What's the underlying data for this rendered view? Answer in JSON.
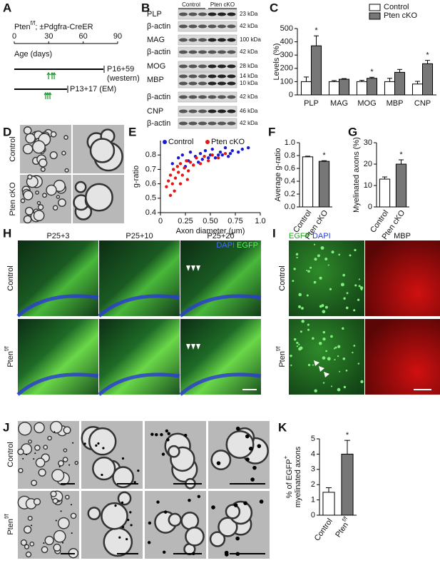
{
  "figure": {
    "panel_labels": [
      "A",
      "B",
      "C",
      "D",
      "E",
      "F",
      "G",
      "H",
      "I",
      "J",
      "K"
    ],
    "A": {
      "genotype": {
        "base": "Pten",
        "sup": "f/f",
        "rest": "; ±Pdgfra-CreER"
      },
      "axis_label": "Age (days)",
      "ticks": [
        0,
        30,
        60,
        90
      ],
      "timeline1": "P16+59",
      "timeline1_note": "(western)",
      "timeline2": "P13+17 (EM)"
    },
    "B": {
      "groups": [
        "Control",
        "Pten cKO"
      ],
      "rows": [
        {
          "protein": "PLP",
          "kda": [
            "23 kDa"
          ]
        },
        {
          "protein": "β-actin",
          "kda": [
            "42 kDa"
          ]
        },
        {
          "protein": "MAG",
          "kda": [
            "100 kDa"
          ]
        },
        {
          "protein": "β-actin",
          "kda": [
            "42 kDa"
          ]
        },
        {
          "protein": "MOG",
          "kda": [
            "28 kDa"
          ]
        },
        {
          "protein": "MBP",
          "kda": [
            "14 kDa",
            "10 kDa"
          ]
        },
        {
          "protein": "β-actin",
          "kda": [
            "42 kDa"
          ]
        },
        {
          "protein": "CNP",
          "kda": [
            "46 kDa"
          ]
        },
        {
          "protein": "β-actin",
          "kda": [
            "42 kDa"
          ]
        }
      ]
    },
    "D": {
      "rows": [
        "Control",
        "Pten cKO"
      ]
    },
    "H": {
      "columns": [
        "P25+3",
        "P25+10",
        "P25+20"
      ],
      "stain1": "DAPI",
      "stain2": "EGFP",
      "rows": [
        {
          "base": "Control"
        },
        {
          "base": "Pten",
          "sup": "f/f"
        }
      ]
    },
    "I": {
      "stain1": "EGFP",
      "stain2": "DAPI",
      "stain3": "MBP",
      "rows": [
        {
          "base": "Control"
        },
        {
          "base": "Pten",
          "sup": "f/f"
        }
      ]
    },
    "J": {
      "rows": [
        {
          "base": "Control"
        },
        {
          "base": "Pten",
          "sup": "f/f"
        }
      ]
    }
  },
  "chart_data": [
    {
      "type": "bar",
      "y_label": "Levels (%)",
      "categories": [
        "PLP",
        "MAG",
        "MOG",
        "MBP",
        "CNP"
      ],
      "series": [
        {
          "name": "Control",
          "color": "#ffffff",
          "values": [
            100,
            100,
            100,
            100,
            82
          ],
          "errors": [
            35,
            8,
            10,
            25,
            20
          ]
        },
        {
          "name": "Pten cKO",
          "color": "#777777",
          "values": [
            370,
            118,
            125,
            170,
            235
          ],
          "errors": [
            75,
            5,
            8,
            22,
            25
          ],
          "significance": [
            "*",
            null,
            "*",
            null,
            "*"
          ]
        }
      ],
      "ylim": [
        0,
        500
      ],
      "yticks": [
        0,
        100,
        200,
        300,
        400,
        500
      ],
      "legend": "upper right"
    },
    {
      "type": "scatter",
      "x_label": "Axon diameter (μm)",
      "y_label": "g-ratio",
      "series": [
        {
          "name": "Control",
          "color": "#1a1ad0",
          "x": [
            0.12,
            0.18,
            0.22,
            0.28,
            0.3,
            0.35,
            0.4,
            0.42,
            0.45,
            0.5,
            0.52,
            0.55,
            0.6,
            0.62,
            0.65,
            0.7,
            0.72,
            0.78,
            0.82,
            0.88,
            0.25,
            0.38,
            0.48,
            0.58,
            0.68
          ],
          "values": [
            0.74,
            0.78,
            0.8,
            0.76,
            0.82,
            0.79,
            0.81,
            0.77,
            0.83,
            0.8,
            0.84,
            0.78,
            0.82,
            0.8,
            0.85,
            0.81,
            0.83,
            0.82,
            0.84,
            0.85,
            0.72,
            0.75,
            0.78,
            0.8,
            0.79
          ]
        },
        {
          "name": "Pten cKO",
          "color": "#e01818",
          "x": [
            0.06,
            0.08,
            0.1,
            0.12,
            0.13,
            0.15,
            0.17,
            0.18,
            0.2,
            0.22,
            0.24,
            0.26,
            0.28,
            0.3,
            0.33,
            0.36,
            0.4,
            0.44,
            0.48,
            0.52,
            0.58,
            0.65,
            0.1,
            0.14,
            0.2,
            0.27
          ],
          "values": [
            0.58,
            0.62,
            0.66,
            0.6,
            0.7,
            0.64,
            0.72,
            0.68,
            0.74,
            0.66,
            0.71,
            0.76,
            0.69,
            0.75,
            0.73,
            0.78,
            0.74,
            0.79,
            0.76,
            0.8,
            0.78,
            0.81,
            0.52,
            0.55,
            0.6,
            0.63
          ]
        }
      ],
      "xlim": [
        0,
        1.0
      ],
      "xticks": [
        0,
        0.25,
        {
          "value": 0.5,
          "label": "0.50"
        },
        0.75,
        {
          "value": 1.0,
          "label": "1.0"
        }
      ],
      "ylim": [
        0.4,
        0.9
      ],
      "yticks": [
        0.4,
        0.5,
        0.6,
        0.7,
        0.8
      ],
      "legend": "upper left"
    },
    {
      "type": "bar",
      "y_label": "Average g-ratio",
      "categories": [
        "Control",
        "Pten cKO"
      ],
      "values": [
        0.78,
        0.71
      ],
      "errors": [
        0.01,
        0.01
      ],
      "colors": [
        "#ffffff",
        "#777777"
      ],
      "significance": [
        null,
        "*"
      ],
      "ylim": [
        0,
        1.0
      ],
      "yticks": [
        {
          "value": 0,
          "label": "0.0"
        },
        0.2,
        0.4,
        0.6,
        0.8,
        {
          "value": 1.0,
          "label": "1.0"
        }
      ]
    },
    {
      "type": "bar",
      "y_label": "Myelinated axons (%)",
      "categories": [
        "Control",
        "Pten cKO"
      ],
      "values": [
        13,
        20
      ],
      "errors": [
        1,
        2
      ],
      "colors": [
        "#ffffff",
        "#777777"
      ],
      "significance": [
        null,
        "*"
      ],
      "ylim": [
        0,
        30
      ],
      "yticks": [
        0,
        10,
        20,
        30
      ]
    },
    {
      "type": "bar",
      "y_label": [
        "% of EGFP",
        "myelinated axons"
      ],
      "y_label_sup": "+",
      "categories": [
        "Control",
        "Pten"
      ],
      "category_superscripts": [
        null,
        "f/f"
      ],
      "values": [
        1.5,
        4.0
      ],
      "errors": [
        0.3,
        0.9
      ],
      "colors": [
        "#ffffff",
        "#777777"
      ],
      "significance": [
        null,
        "*"
      ],
      "ylim": [
        0,
        5
      ],
      "yticks": [
        0,
        1,
        2,
        3,
        4,
        5
      ]
    }
  ]
}
